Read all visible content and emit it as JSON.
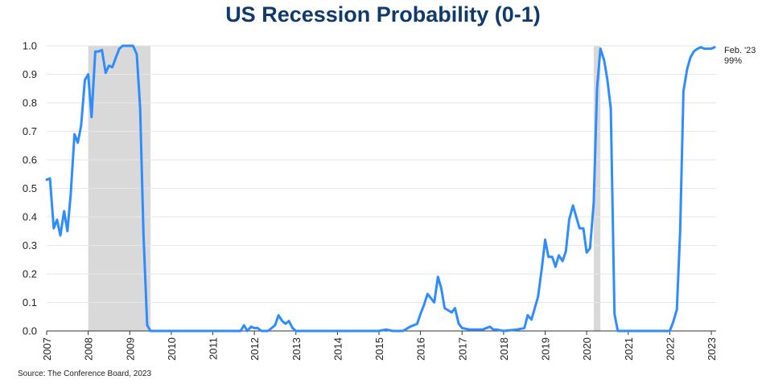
{
  "chart_data": {
    "type": "line",
    "title": "US Recession Probability (0-1)",
    "xlabel": "",
    "ylabel": "",
    "ylim": [
      0,
      1
    ],
    "xlim": [
      2007.0,
      2023.15
    ],
    "yticks": [
      "0.0",
      "0.1",
      "0.2",
      "0.3",
      "0.4",
      "0.5",
      "0.6",
      "0.7",
      "0.8",
      "0.9",
      "1.0"
    ],
    "xticks": [
      "2007",
      "2008",
      "2009",
      "2010",
      "2011",
      "2012",
      "2013",
      "2014",
      "2015",
      "2016",
      "2017",
      "2018",
      "2019",
      "2020",
      "2021",
      "2022",
      "2023"
    ],
    "grid": "horizontal",
    "line_color": "#2f8cff",
    "recession_shading_color": "#d9d9d9",
    "recessions": [
      {
        "start": 2008.0,
        "end": 2009.5
      },
      {
        "start": 2020.17,
        "end": 2020.33
      }
    ],
    "end_annotation": {
      "line1": "Feb. '23",
      "line2": "99%"
    },
    "series": [
      {
        "name": "US Recession Probability",
        "x": [
          2007.0,
          2007.08,
          2007.17,
          2007.25,
          2007.33,
          2007.42,
          2007.5,
          2007.58,
          2007.67,
          2007.75,
          2007.83,
          2007.92,
          2008.0,
          2008.08,
          2008.17,
          2008.25,
          2008.33,
          2008.42,
          2008.5,
          2008.58,
          2008.67,
          2008.75,
          2008.83,
          2008.92,
          2009.0,
          2009.08,
          2009.17,
          2009.25,
          2009.33,
          2009.42,
          2009.5,
          2009.58,
          2010.0,
          2011.0,
          2011.67,
          2011.75,
          2011.83,
          2011.92,
          2012.0,
          2012.08,
          2012.17,
          2012.33,
          2012.5,
          2012.58,
          2012.67,
          2012.75,
          2012.83,
          2012.92,
          2013.0,
          2013.5,
          2014.0,
          2015.0,
          2015.17,
          2015.33,
          2015.58,
          2015.75,
          2015.92,
          2016.0,
          2016.08,
          2016.17,
          2016.33,
          2016.42,
          2016.5,
          2016.58,
          2016.75,
          2016.83,
          2016.92,
          2017.0,
          2017.17,
          2017.5,
          2017.67,
          2017.75,
          2017.83,
          2018.0,
          2018.33,
          2018.5,
          2018.58,
          2018.67,
          2018.75,
          2018.83,
          2018.92,
          2019.0,
          2019.08,
          2019.17,
          2019.25,
          2019.33,
          2019.42,
          2019.5,
          2019.58,
          2019.67,
          2019.75,
          2019.83,
          2019.92,
          2020.0,
          2020.08,
          2020.17,
          2020.25,
          2020.33,
          2020.42,
          2020.5,
          2020.58,
          2020.67,
          2020.75,
          2020.83,
          2021.0,
          2022.0,
          2022.08,
          2022.17,
          2022.25,
          2022.33,
          2022.42,
          2022.5,
          2022.58,
          2022.67,
          2022.75,
          2022.83,
          2022.92,
          2023.0,
          2023.08
        ],
        "values": [
          0.53,
          0.535,
          0.36,
          0.39,
          0.335,
          0.42,
          0.35,
          0.48,
          0.69,
          0.66,
          0.72,
          0.88,
          0.9,
          0.75,
          0.98,
          0.98,
          0.985,
          0.905,
          0.93,
          0.925,
          0.96,
          0.99,
          1.0,
          1.0,
          1.0,
          1.0,
          0.97,
          0.78,
          0.34,
          0.02,
          0.0,
          0.0,
          0.0,
          0.0,
          0.0,
          0.02,
          0.0,
          0.015,
          0.01,
          0.01,
          0.0,
          0.0,
          0.02,
          0.055,
          0.035,
          0.025,
          0.035,
          0.01,
          0.0,
          0.0,
          0.0,
          0.0,
          0.005,
          0.0,
          0.0,
          0.015,
          0.025,
          0.06,
          0.09,
          0.13,
          0.1,
          0.19,
          0.15,
          0.08,
          0.065,
          0.08,
          0.025,
          0.01,
          0.005,
          0.005,
          0.015,
          0.005,
          0.005,
          0.0,
          0.005,
          0.01,
          0.055,
          0.04,
          0.08,
          0.12,
          0.22,
          0.32,
          0.26,
          0.26,
          0.225,
          0.265,
          0.245,
          0.28,
          0.39,
          0.44,
          0.4,
          0.36,
          0.36,
          0.275,
          0.29,
          0.45,
          0.85,
          0.99,
          0.95,
          0.88,
          0.78,
          0.06,
          0.0,
          0.0,
          0.0,
          0.0,
          0.03,
          0.075,
          0.35,
          0.84,
          0.92,
          0.96,
          0.98,
          0.99,
          0.995,
          0.99,
          0.99,
          0.99,
          0.995
        ]
      }
    ]
  },
  "source": "Source: The Conference Board, 2023"
}
